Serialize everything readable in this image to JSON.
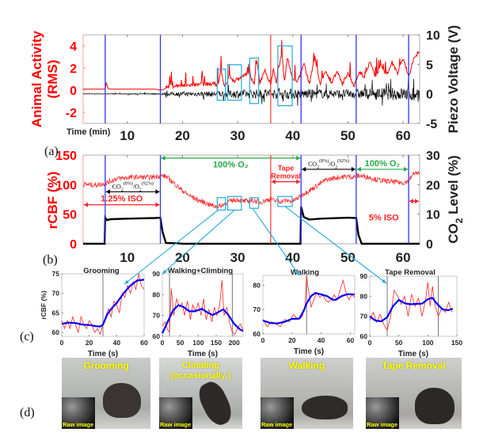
{
  "figure": {
    "panel_labels": [
      "(a)",
      "(b)",
      "(c)",
      "(d)"
    ]
  },
  "chart_data": [
    {
      "id": "panel-a",
      "type": "line",
      "title": "",
      "xlabel": "Time (min)",
      "ylabel_left": "Animal Activity (RMS)",
      "ylabel_right": "Piezo Voltage (V)",
      "xlim": [
        2,
        63
      ],
      "ylim_left": [
        -3,
        5
      ],
      "ylim_right": [
        -5,
        10
      ],
      "xticks": [
        10,
        20,
        30,
        40,
        50,
        60
      ],
      "yticks_left": [
        -2,
        0,
        2,
        4
      ],
      "yticks_right": [
        -5,
        0,
        5,
        10
      ],
      "colors": {
        "left_axis": "#ff0000",
        "right_axis": "#000000",
        "event_line": "#3333ff",
        "tape_line": "#ff3333",
        "roi_box": "#22aadd"
      },
      "event_lines_min": [
        6,
        16,
        41.5,
        51.5,
        61
      ],
      "tape_removal_line_min": 36,
      "roi_boxes_min": [
        [
          26.3,
          27.8
        ],
        [
          28.2,
          30.7
        ],
        [
          32.2,
          33.8
        ],
        [
          37.3,
          39.9
        ]
      ],
      "roi_box_y": [
        [
          -0.9,
          1.9
        ],
        [
          -0.9,
          2.3
        ],
        [
          -1.2,
          2.9
        ],
        [
          -1.4,
          4.0
        ]
      ],
      "series": [
        {
          "name": "Animal Activity (RMS)",
          "axis": "left",
          "color": "#ff0000",
          "x": [
            2,
            6,
            6.2,
            6.5,
            7,
            15,
            16,
            16.5,
            17,
            18,
            20,
            22,
            24,
            26,
            26.5,
            27,
            27.5,
            28,
            28.5,
            29,
            30,
            31,
            32,
            33,
            33.5,
            34,
            35,
            36,
            36.5,
            37,
            38,
            38.5,
            39,
            40,
            41,
            42,
            43,
            44,
            45,
            46,
            47,
            48,
            49,
            50,
            51,
            52,
            53,
            54,
            55,
            56,
            57,
            58,
            59,
            60,
            61,
            62,
            63
          ],
          "y": [
            0.1,
            0.1,
            0.7,
            0.15,
            0.1,
            0.1,
            0.0,
            0.05,
            0.2,
            0.3,
            0.35,
            0.4,
            0.45,
            0.5,
            0.4,
            1.8,
            0.4,
            0.5,
            1.3,
            0.8,
            0.9,
            1.2,
            1.5,
            0.5,
            2.6,
            0.6,
            1.7,
            0.4,
            1.9,
            0.6,
            3.4,
            0.7,
            2.9,
            0.9,
            0.8,
            2.4,
            0.5,
            2.9,
            0.5,
            1.7,
            0.5,
            1.7,
            0.5,
            1.5,
            0.3,
            1.5,
            1.2,
            2.5,
            1.0,
            2.2,
            1.3,
            2.4,
            1.4,
            2.8,
            1.2,
            2.8,
            3.5
          ]
        },
        {
          "name": "Piezo Voltage (V)",
          "axis": "right",
          "color": "#000000",
          "x": [
            2,
            16,
            17,
            25,
            30,
            35,
            40,
            45,
            50,
            55,
            60,
            63
          ],
          "y_amplitude": [
            0.1,
            0.2,
            0.6,
            0.9,
            1.4,
            1.6,
            1.8,
            1.5,
            1.5,
            2.0,
            2.2,
            2.8
          ]
        }
      ]
    },
    {
      "id": "panel-b",
      "type": "line",
      "title": "",
      "xlabel": "",
      "ylabel_left": "rCBF (%)",
      "ylabel_right": "CO2 Level (%)",
      "xlim": [
        2,
        63
      ],
      "ylim_left": [
        0,
        150
      ],
      "ylim_right": [
        0,
        30
      ],
      "xticks": [
        10,
        20,
        30,
        40,
        50,
        60
      ],
      "yticks_left": [
        0,
        50,
        100,
        150
      ],
      "yticks_right": [
        0,
        10,
        20,
        30
      ],
      "event_lines_min": [
        6,
        16,
        41.5,
        51.5,
        61
      ],
      "tape_removal_line_min": 36,
      "roi_boxes_min": [
        [
          26.3,
          27.8
        ],
        [
          28.2,
          30.7
        ],
        [
          32.2,
          33.8
        ],
        [
          37.3,
          39.9
        ]
      ],
      "roi_box_y": [
        [
          57,
          78
        ],
        [
          57,
          80
        ],
        [
          60,
          78
        ],
        [
          63,
          80
        ]
      ],
      "annotations": [
        {
          "text": "1.25% ISO",
          "color": "#ff2222",
          "range_min": [
            2,
            16
          ],
          "y": 66
        },
        {
          "text_main": "CO",
          "sub1": "2",
          "sup1": "(8%)",
          "mid": "/O",
          "sub2": "2",
          "sup2": "(92%)",
          "color": "#000000",
          "range_min": [
            6,
            16
          ],
          "y": 88
        },
        {
          "text": "100% O₂",
          "color": "#22aa44",
          "range_min": [
            16,
            41.5
          ],
          "y": 145
        },
        {
          "text": "Tape Removal",
          "color": "#ff2222",
          "range_min": [
            36,
            41.5
          ],
          "y": 105
        },
        {
          "text_main": "CO",
          "sub1": "2",
          "sup1": "(8%)",
          "mid": "/O",
          "sub2": "2",
          "sup2": "(92%)",
          "color": "#000000",
          "range_min": [
            41.5,
            51.5
          ],
          "y": 126
        },
        {
          "text": "100% O₂",
          "color": "#22aa44",
          "range_min": [
            51.5,
            61
          ],
          "y": 126
        },
        {
          "text": "5% ISO",
          "color": "#ff2222",
          "x_min": 56.5,
          "y": 45
        },
        {
          "text": "",
          "color": "#ff2222",
          "range_min": [
            61,
            63
          ],
          "y": 72
        }
      ],
      "series": [
        {
          "name": "rCBF (%)",
          "axis": "left",
          "color": "#ff2222",
          "x": [
            2,
            4,
            6,
            8,
            10,
            12,
            14,
            16,
            17,
            18,
            19,
            20,
            21,
            22,
            23,
            24,
            25,
            26,
            27,
            28,
            29,
            30,
            31,
            32,
            33,
            34,
            35,
            36,
            37,
            38,
            39,
            40,
            41,
            42,
            43,
            44,
            45,
            46,
            47,
            48,
            49,
            50,
            51,
            52,
            53,
            54,
            55,
            56,
            57,
            58,
            59,
            60,
            61,
            62,
            63
          ],
          "y": [
            101,
            99,
            102,
            110,
            112,
            113,
            112,
            115,
            114,
            106,
            98,
            90,
            83,
            78,
            73,
            70,
            66,
            63,
            64,
            70,
            73,
            75,
            72,
            72,
            73,
            70,
            73,
            76,
            72,
            72,
            73,
            72,
            78,
            85,
            90,
            96,
            102,
            108,
            110,
            112,
            113,
            114,
            113,
            115,
            114,
            112,
            109,
            107,
            106,
            105,
            104,
            103,
            106,
            120,
            118
          ]
        },
        {
          "name": "CO2 Level (%)",
          "axis": "right",
          "color": "#000000",
          "x": [
            2,
            5.9,
            6,
            6.3,
            7,
            10,
            15,
            16,
            16.4,
            17,
            18,
            19,
            20,
            41.4,
            41.5,
            42,
            43,
            45,
            50,
            51.5,
            51.9,
            52.5,
            63
          ],
          "y": [
            0,
            0,
            8.8,
            8.0,
            8.3,
            8.5,
            8.7,
            8.8,
            4,
            0.3,
            0.2,
            0.2,
            0,
            0,
            12.5,
            9.0,
            8.2,
            8.5,
            8.8,
            8.7,
            3,
            0,
            0
          ]
        }
      ]
    },
    {
      "id": "panel-c1",
      "type": "line",
      "title": "Grooming",
      "xlabel": "Time (s)",
      "ylabel": "rCBF (%)",
      "xlim": [
        0,
        60
      ],
      "ylim": [
        59,
        75
      ],
      "xticks": [
        0,
        20,
        40,
        60
      ],
      "yticks": [
        60,
        65,
        70,
        75
      ],
      "vlines": [
        30
      ],
      "series": [
        {
          "name": "raw",
          "color": "#ff2222",
          "x": [
            0,
            2,
            4,
            6,
            8,
            10,
            12,
            14,
            16,
            18,
            20,
            22,
            24,
            26,
            28,
            30,
            32,
            34,
            36,
            38,
            40,
            42,
            44,
            46,
            48,
            50,
            52,
            54,
            56,
            58,
            60
          ],
          "y": [
            63,
            61,
            63,
            61,
            64,
            62,
            60,
            64,
            62,
            61,
            63,
            62,
            60,
            61,
            59.5,
            62,
            64,
            66,
            64,
            68,
            67,
            65,
            70,
            69,
            72,
            70,
            73,
            71,
            75,
            72,
            71
          ]
        },
        {
          "name": "smoothed",
          "color": "#0000ff",
          "x": [
            0,
            5,
            10,
            15,
            20,
            25,
            28,
            30,
            33,
            36,
            40,
            45,
            50,
            55,
            58,
            60
          ],
          "y": [
            62.2,
            62.5,
            62.4,
            62.0,
            61.9,
            61.6,
            61.5,
            62.0,
            64.5,
            66.0,
            67.5,
            70.0,
            72.0,
            73.3,
            73.4,
            73.5
          ]
        }
      ]
    },
    {
      "id": "panel-c2",
      "type": "line",
      "title": "Walking+Climbing",
      "xlabel": "Time (s)",
      "ylabel": "",
      "xlim": [
        0,
        225
      ],
      "ylim": [
        60,
        90
      ],
      "xticks": [
        0,
        50,
        100,
        150,
        200
      ],
      "yticks": [
        60,
        70,
        80,
        90
      ],
      "vlines": [
        20,
        195
      ],
      "series": [
        {
          "name": "raw",
          "color": "#ff2222",
          "x": [
            0,
            8,
            15,
            20,
            25,
            32,
            40,
            48,
            55,
            62,
            70,
            78,
            85,
            92,
            100,
            108,
            115,
            122,
            130,
            138,
            145,
            152,
            160,
            166,
            172,
            180,
            188,
            195,
            202,
            210,
            218,
            225
          ],
          "y": [
            65,
            67,
            63,
            62,
            83,
            70,
            78,
            74,
            76,
            70,
            77,
            68,
            75,
            72,
            76,
            70,
            78,
            68,
            73,
            67,
            74,
            70,
            75,
            87,
            70,
            74,
            66,
            62,
            61,
            64,
            66,
            63
          ]
        },
        {
          "name": "smoothed",
          "color": "#0000ff",
          "x": [
            0,
            15,
            30,
            45,
            60,
            75,
            90,
            110,
            125,
            140,
            155,
            170,
            185,
            200,
            215,
            225
          ],
          "y": [
            61.5,
            67,
            72.5,
            75,
            74,
            72,
            72,
            73.2,
            71.5,
            70.2,
            71.5,
            73,
            70,
            66,
            63.5,
            62.5
          ]
        }
      ]
    },
    {
      "id": "panel-c3",
      "type": "line",
      "title": "Walking",
      "xlabel": "Time (s)",
      "ylabel": "",
      "xlim": [
        0,
        63
      ],
      "ylim": [
        60,
        84
      ],
      "xticks": [
        0,
        20,
        40,
        60
      ],
      "yticks": [
        60,
        70,
        80
      ],
      "vlines": [
        30
      ],
      "series": [
        {
          "name": "raw",
          "color": "#ff2222",
          "x": [
            0,
            3,
            6,
            9,
            12,
            15,
            18,
            21,
            24,
            27,
            29,
            30,
            31,
            33,
            35,
            37,
            39,
            41,
            43,
            45,
            47,
            49,
            51,
            53,
            55,
            57,
            59,
            61,
            63
          ],
          "y": [
            66,
            63,
            65,
            64,
            63,
            66,
            65,
            68,
            66,
            67,
            72,
            84,
            79,
            71,
            74,
            77,
            75,
            76,
            74,
            73,
            74,
            76,
            74,
            78,
            82,
            77,
            74,
            76,
            75
          ]
        },
        {
          "name": "smoothed",
          "color": "#0000ff",
          "x": [
            0,
            5,
            10,
            15,
            20,
            25,
            28,
            30,
            33,
            36,
            40,
            44,
            48,
            50,
            54,
            58,
            63
          ],
          "y": [
            65.5,
            64.5,
            64.3,
            65.0,
            66.2,
            66.3,
            69.5,
            72.5,
            75.5,
            76.8,
            76.2,
            75.5,
            74.0,
            74.0,
            75.5,
            76.3,
            76.2
          ]
        }
      ]
    },
    {
      "id": "panel-c4",
      "type": "line",
      "title": "Tape Removal",
      "xlabel": "Time (s)",
      "ylabel": "",
      "xlim": [
        0,
        150
      ],
      "ylim": [
        60,
        90
      ],
      "xticks": [
        0,
        50,
        100,
        150
      ],
      "yticks": [
        60,
        70,
        80,
        90
      ],
      "vlines": [
        30,
        118
      ],
      "series": [
        {
          "name": "raw",
          "color": "#ff2222",
          "x": [
            0,
            6,
            12,
            18,
            24,
            30,
            36,
            42,
            48,
            54,
            60,
            66,
            72,
            78,
            84,
            90,
            96,
            100,
            104,
            108,
            112,
            118,
            124,
            130,
            136,
            142
          ],
          "y": [
            68,
            72,
            67,
            71,
            66,
            63,
            70,
            83,
            80,
            76,
            80,
            70,
            81,
            75,
            79,
            70,
            78,
            87,
            75,
            85,
            76,
            70,
            74,
            72,
            77,
            72
          ]
        },
        {
          "name": "smoothed",
          "color": "#0000ff",
          "x": [
            0,
            10,
            20,
            30,
            40,
            50,
            60,
            70,
            80,
            90,
            100,
            108,
            115,
            125,
            135,
            143
          ],
          "y": [
            70,
            67.8,
            67.5,
            69.5,
            75,
            78.2,
            76.5,
            76,
            76.2,
            76.3,
            78.5,
            79.2,
            76.5,
            73.5,
            73,
            73.8
          ]
        }
      ]
    }
  ],
  "photos": [
    {
      "caption": "Grooming",
      "inset_label": "Raw image"
    },
    {
      "caption": "Climbing (occasionally )",
      "inset_label": "Raw image"
    },
    {
      "caption": "Walking",
      "inset_label": "Raw image"
    },
    {
      "caption": "Tape Removal",
      "inset_label": "Raw image"
    }
  ]
}
